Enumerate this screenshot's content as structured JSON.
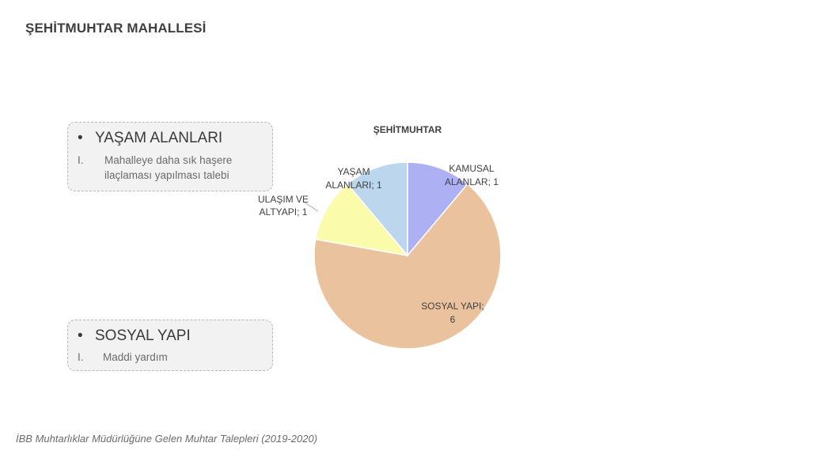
{
  "page": {
    "title": "ŞEHİTMUHTAR MAHALLESİ",
    "footer": "İBB Muhtarlıklar Müdürlüğüne Gelen Muhtar Talepleri (2019-2020)"
  },
  "boxes": [
    {
      "bullet": "•",
      "heading": "YAŞAM ALANLARI",
      "items": [
        {
          "num": "I.",
          "text": "Mahalleye daha sık haşere ilaçlaması yapılması talebi"
        }
      ]
    },
    {
      "bullet": "•",
      "heading": "SOSYAL YAPI",
      "items": [
        {
          "num": "I.",
          "text": "Maddi yardım"
        }
      ]
    }
  ],
  "chart_data": {
    "type": "pie",
    "title": "ŞEHİTMUHTAR",
    "start_angle": "12 o'clock, clockwise",
    "slices": [
      {
        "label": "KAMUSAL ALANLAR",
        "value": 1,
        "color": "#aeb0f4",
        "label_lines": [
          "KAMUSAL",
          "ALANLAR; 1"
        ]
      },
      {
        "label": "SOSYAL YAPI",
        "value": 6,
        "color": "#ebc29e",
        "label_lines": [
          "SOSYAL YAPI;",
          "6"
        ]
      },
      {
        "label": "ULAŞIM VE ALTYAPI",
        "value": 1,
        "color": "#fafcac",
        "label_lines": [
          "ULAŞIM VE",
          "ALTYAPI; 1"
        ]
      },
      {
        "label": "YAŞAM ALANLARI",
        "value": 1,
        "color": "#bcd6ee",
        "label_lines": [
          "YAŞAM",
          "ALANLARI; 1"
        ]
      }
    ],
    "colors": {
      "slice_border": "#ffffff",
      "leader_line": "#a6a6a6"
    }
  }
}
